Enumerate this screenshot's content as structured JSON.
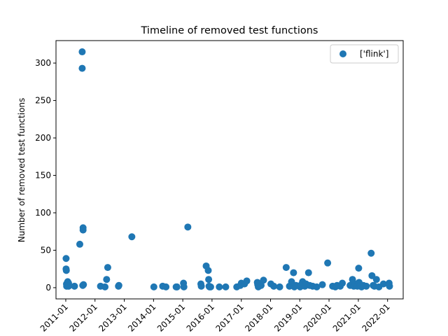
{
  "chart_data": {
    "type": "scatter",
    "title": "Timeline of removed test functions",
    "xlabel": "",
    "ylabel": "Number of removed test functions",
    "xlim": [
      "2010-09-01",
      "2022-07-15"
    ],
    "ylim": [
      -15,
      330
    ],
    "grid": false,
    "legend_position": "top-right",
    "yticks": [
      0,
      50,
      100,
      150,
      200,
      250,
      300
    ],
    "xticks": [
      {
        "date": "2011-01-01",
        "label": "2011-01"
      },
      {
        "date": "2012-01-01",
        "label": "2012-01"
      },
      {
        "date": "2013-01-01",
        "label": "2013-01"
      },
      {
        "date": "2014-01-01",
        "label": "2014-01"
      },
      {
        "date": "2015-01-01",
        "label": "2015-01"
      },
      {
        "date": "2016-01-01",
        "label": "2016-01"
      },
      {
        "date": "2017-01-01",
        "label": "2017-01"
      },
      {
        "date": "2018-01-01",
        "label": "2018-01"
      },
      {
        "date": "2019-01-01",
        "label": "2019-01"
      },
      {
        "date": "2020-01-01",
        "label": "2020-01"
      },
      {
        "date": "2021-01-01",
        "label": "2021-01"
      },
      {
        "date": "2022-01-01",
        "label": "2022-01"
      }
    ],
    "series": [
      {
        "name": "['flink']",
        "color": "#1f77b4",
        "points": [
          {
            "x": "2011-01-05",
            "y": 39
          },
          {
            "x": "2011-01-05",
            "y": 25
          },
          {
            "x": "2011-01-08",
            "y": 23
          },
          {
            "x": "2011-01-10",
            "y": 5
          },
          {
            "x": "2011-01-12",
            "y": 2
          },
          {
            "x": "2011-01-20",
            "y": 3
          },
          {
            "x": "2011-01-25",
            "y": 8
          },
          {
            "x": "2011-02-05",
            "y": 6
          },
          {
            "x": "2011-02-05",
            "y": 2
          },
          {
            "x": "2011-04-20",
            "y": 2
          },
          {
            "x": "2011-06-25",
            "y": 58
          },
          {
            "x": "2011-07-25",
            "y": 315
          },
          {
            "x": "2011-07-25",
            "y": 293
          },
          {
            "x": "2011-08-01",
            "y": 3
          },
          {
            "x": "2011-08-05",
            "y": 80
          },
          {
            "x": "2011-08-05",
            "y": 77
          },
          {
            "x": "2011-08-10",
            "y": 4
          },
          {
            "x": "2012-03-10",
            "y": 2
          },
          {
            "x": "2012-05-05",
            "y": 1
          },
          {
            "x": "2012-05-25",
            "y": 11
          },
          {
            "x": "2012-06-08",
            "y": 27
          },
          {
            "x": "2012-10-20",
            "y": 2
          },
          {
            "x": "2012-10-25",
            "y": 3
          },
          {
            "x": "2013-04-05",
            "y": 68
          },
          {
            "x": "2014-01-05",
            "y": 1
          },
          {
            "x": "2014-04-25",
            "y": 2
          },
          {
            "x": "2014-06-05",
            "y": 1
          },
          {
            "x": "2014-10-10",
            "y": 1
          },
          {
            "x": "2014-10-20",
            "y": 1
          },
          {
            "x": "2015-01-10",
            "y": 6
          },
          {
            "x": "2015-01-15",
            "y": 1
          },
          {
            "x": "2015-03-05",
            "y": 81
          },
          {
            "x": "2015-08-15",
            "y": 5
          },
          {
            "x": "2015-08-20",
            "y": 2
          },
          {
            "x": "2015-10-20",
            "y": 29
          },
          {
            "x": "2015-11-15",
            "y": 23
          },
          {
            "x": "2015-11-20",
            "y": 11
          },
          {
            "x": "2015-11-25",
            "y": 2
          },
          {
            "x": "2015-12-01",
            "y": 1
          },
          {
            "x": "2015-12-15",
            "y": 1
          },
          {
            "x": "2016-04-01",
            "y": 1
          },
          {
            "x": "2016-06-20",
            "y": 1
          },
          {
            "x": "2016-11-05",
            "y": 1
          },
          {
            "x": "2016-12-20",
            "y": 3
          },
          {
            "x": "2017-01-01",
            "y": 6
          },
          {
            "x": "2017-02-10",
            "y": 5
          },
          {
            "x": "2017-03-10",
            "y": 9
          },
          {
            "x": "2017-07-20",
            "y": 7
          },
          {
            "x": "2017-07-25",
            "y": 4
          },
          {
            "x": "2017-08-01",
            "y": 1
          },
          {
            "x": "2017-09-05",
            "y": 3
          },
          {
            "x": "2017-10-05",
            "y": 10
          },
          {
            "x": "2018-01-05",
            "y": 5
          },
          {
            "x": "2018-02-10",
            "y": 2
          },
          {
            "x": "2018-04-25",
            "y": 1
          },
          {
            "x": "2018-07-15",
            "y": 27
          },
          {
            "x": "2018-08-25",
            "y": 2
          },
          {
            "x": "2018-09-20",
            "y": 8
          },
          {
            "x": "2018-10-15",
            "y": 20
          },
          {
            "x": "2018-10-25",
            "y": 1
          },
          {
            "x": "2018-11-15",
            "y": 3
          },
          {
            "x": "2019-01-05",
            "y": 1
          },
          {
            "x": "2019-01-20",
            "y": 4
          },
          {
            "x": "2019-02-05",
            "y": 8
          },
          {
            "x": "2019-02-15",
            "y": 6
          },
          {
            "x": "2019-03-05",
            "y": 2
          },
          {
            "x": "2019-03-20",
            "y": 5
          },
          {
            "x": "2019-04-20",
            "y": 20
          },
          {
            "x": "2019-05-05",
            "y": 3
          },
          {
            "x": "2019-06-10",
            "y": 2
          },
          {
            "x": "2019-08-01",
            "y": 1
          },
          {
            "x": "2019-10-10",
            "y": 4
          },
          {
            "x": "2019-12-15",
            "y": 33
          },
          {
            "x": "2020-02-15",
            "y": 2
          },
          {
            "x": "2020-03-20",
            "y": 1
          },
          {
            "x": "2020-04-10",
            "y": 3
          },
          {
            "x": "2020-05-20",
            "y": 2
          },
          {
            "x": "2020-06-15",
            "y": 6
          },
          {
            "x": "2020-09-20",
            "y": 3
          },
          {
            "x": "2020-10-10",
            "y": 4
          },
          {
            "x": "2020-10-20",
            "y": 11
          },
          {
            "x": "2020-11-05",
            "y": 2
          },
          {
            "x": "2020-11-25",
            "y": 5
          },
          {
            "x": "2020-12-20",
            "y": 2
          },
          {
            "x": "2021-01-05",
            "y": 26
          },
          {
            "x": "2021-01-10",
            "y": 7
          },
          {
            "x": "2021-01-25",
            "y": 4
          },
          {
            "x": "2021-02-10",
            "y": 1
          },
          {
            "x": "2021-03-05",
            "y": 3
          },
          {
            "x": "2021-04-10",
            "y": 2
          },
          {
            "x": "2021-06-10",
            "y": 46
          },
          {
            "x": "2021-06-20",
            "y": 16
          },
          {
            "x": "2021-07-05",
            "y": 3
          },
          {
            "x": "2021-07-20",
            "y": 2
          },
          {
            "x": "2021-08-15",
            "y": 11
          },
          {
            "x": "2021-09-15",
            "y": 1
          },
          {
            "x": "2021-11-10",
            "y": 5
          },
          {
            "x": "2022-01-20",
            "y": 6
          },
          {
            "x": "2022-01-25",
            "y": 2
          }
        ]
      }
    ]
  }
}
